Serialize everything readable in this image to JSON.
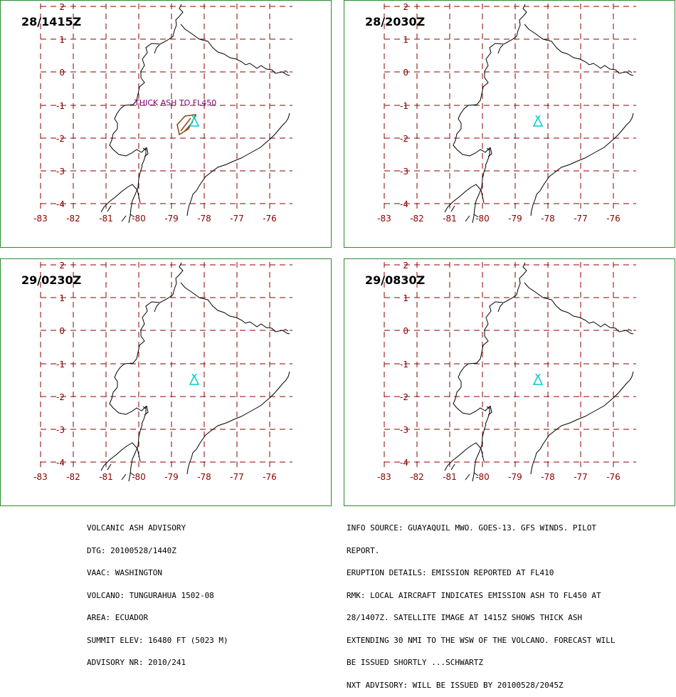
{
  "colors": {
    "panel_border": "#2e8b2e",
    "grid": "#8b0000",
    "coast": "#000000",
    "volcano": "#00cccc",
    "ash_label": "#800080",
    "ash_polygon": "#8b4513"
  },
  "map": {
    "lon_ticks": [
      "-83",
      "-82",
      "-81",
      "-80",
      "-79",
      "-78",
      "-77",
      "-76"
    ],
    "lat_ticks": [
      "2",
      "1",
      "0",
      "-1",
      "-2",
      "-3",
      "-4"
    ],
    "volcano_icon": "volcano-triangle-icon"
  },
  "panels": [
    {
      "timestamp": "28/1415Z",
      "ash_label": "THICK ASH TO FL450",
      "has_ash": true
    },
    {
      "timestamp": "28/2030Z",
      "ash_label": "",
      "has_ash": false
    },
    {
      "timestamp": "29/0230Z",
      "ash_label": "",
      "has_ash": false
    },
    {
      "timestamp": "29/0830Z",
      "ash_label": "",
      "has_ash": false
    }
  ],
  "advisory": {
    "left_lines": [
      "VOLCANIC ASH ADVISORY",
      "DTG: 20100528/1440Z",
      "VAAC: WASHINGTON",
      "VOLCANO: TUNGURAHUA 1502-08",
      "AREA: ECUADOR",
      "SUMMIT ELEV: 16480 FT (5023 M)",
      "ADVISORY NR: 2010/241"
    ],
    "right_lines": [
      "INFO SOURCE: GUAYAQUIL MWO. GOES-13. GFS WINDS. PILOT",
      "REPORT.",
      "ERUPTION DETAILS: EMISSION REPORTED AT FL410",
      "RMK: LOCAL AIRCRAFT INDICATES EMISSION ASH TO FL450 AT",
      "28/1407Z. SATELLITE IMAGE AT 1415Z SHOWS THICK ASH",
      "EXTENDING 30 NMI TO THE WSW OF THE VOLCANO. FORECAST WILL",
      "BE ISSUED SHORTLY ...SCHWARTZ",
      "NXT ADVISORY: WILL BE ISSUED BY 20100528/2045Z"
    ]
  }
}
